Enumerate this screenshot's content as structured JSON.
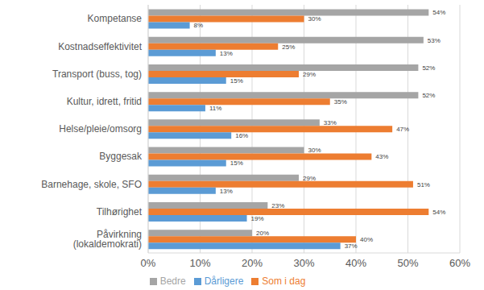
{
  "chart_data": {
    "type": "bar",
    "orientation": "horizontal",
    "categories": [
      "Kompetanse",
      "Kostnadseffektivitet",
      "Transport (buss, tog)",
      "Kultur, idrett, fritid",
      "Helse/pleie/omsorg",
      "Byggesak",
      "Barnehage, skole, SFO",
      "Tilhørighet",
      "Påvirkning (lokaldemokrati)"
    ],
    "series": [
      {
        "name": "Bedre",
        "color": "#a5a5a5",
        "values": [
          54,
          53,
          52,
          52,
          33,
          30,
          29,
          23,
          20
        ],
        "value_labels": [
          "54%",
          "53%",
          "52%",
          "52%",
          "33%",
          "30%",
          "29%",
          "23%",
          "20%"
        ]
      },
      {
        "name": "Som i dag",
        "color": "#ed7d31",
        "values": [
          30,
          25,
          29,
          35,
          47,
          43,
          51,
          54,
          40
        ],
        "value_labels": [
          "30%",
          "25%",
          "29%",
          "35%",
          "47%",
          "43%",
          "51%",
          "54%",
          "40%"
        ]
      },
      {
        "name": "Dårligere",
        "color": "#5b9bd5",
        "values": [
          8,
          13,
          15,
          11,
          16,
          15,
          13,
          19,
          37
        ],
        "value_labels": [
          "8%",
          "13%",
          "15%",
          "11%",
          "16%",
          "15%",
          "13%",
          "19%",
          "37%"
        ]
      }
    ],
    "xlim": [
      0,
      60
    ],
    "xticks": [
      {
        "value": 0,
        "label": "0%"
      },
      {
        "value": 10,
        "label": "10%"
      },
      {
        "value": 20,
        "label": "20%"
      },
      {
        "value": 30,
        "label": "30%"
      },
      {
        "value": 40,
        "label": "40%"
      },
      {
        "value": 50,
        "label": "50%"
      },
      {
        "value": 60,
        "label": "60%"
      }
    ],
    "grid": true,
    "legend": "bottom",
    "data_labels": true
  }
}
